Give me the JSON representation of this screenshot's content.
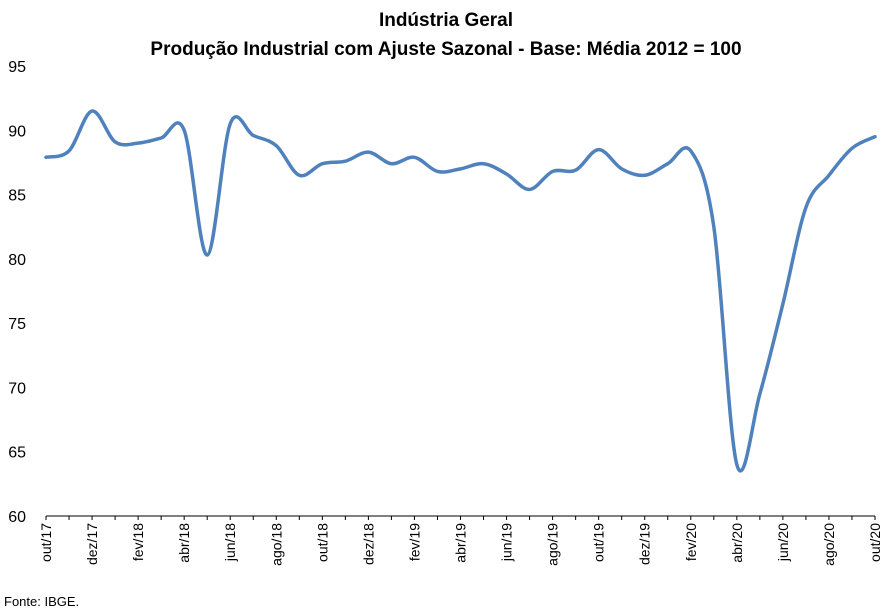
{
  "chart_data": {
    "type": "line",
    "title": "Indústria Geral",
    "subtitle": "Produção Industrial com Ajuste Sazonal - Base: Média 2012 = 100",
    "xlabel": "",
    "ylabel": "",
    "ylim": [
      60,
      95
    ],
    "yticks": [
      60,
      65,
      70,
      75,
      80,
      85,
      90,
      95
    ],
    "grid": false,
    "color": "#4f81bd",
    "x": [
      "out/17",
      "nov/17",
      "dez/17",
      "jan/18",
      "fev/18",
      "mar/18",
      "abr/18",
      "mai/18",
      "jun/18",
      "jul/18",
      "ago/18",
      "set/18",
      "out/18",
      "nov/18",
      "dez/18",
      "jan/19",
      "fev/19",
      "mar/19",
      "abr/19",
      "mai/19",
      "jun/19",
      "jul/19",
      "ago/19",
      "set/19",
      "out/19",
      "nov/19",
      "dez/19",
      "jan/20",
      "fev/20",
      "mar/20",
      "abr/20",
      "mai/20",
      "jun/20",
      "jul/20",
      "ago/20",
      "set/20",
      "out/20"
    ],
    "xtick_labels": [
      "out/17",
      "dez/17",
      "fev/18",
      "abr/18",
      "jun/18",
      "ago/18",
      "out/18",
      "dez/18",
      "fev/19",
      "abr/19",
      "jun/19",
      "ago/19",
      "out/19",
      "dez/19",
      "fev/20",
      "abr/20",
      "jun/20",
      "ago/20",
      "out/20"
    ],
    "values": [
      87.9,
      88.4,
      91.5,
      89.1,
      89.0,
      89.4,
      90.0,
      80.3,
      90.5,
      89.6,
      88.8,
      86.5,
      87.4,
      87.6,
      88.3,
      87.4,
      87.9,
      86.8,
      87.0,
      87.4,
      86.6,
      85.4,
      86.8,
      86.9,
      88.5,
      87.0,
      86.5,
      87.4,
      88.4,
      82.5,
      64.0,
      69.5,
      76.5,
      84.0,
      86.5,
      88.6,
      89.5
    ]
  },
  "footer": {
    "source": "Fonte: IBGE."
  }
}
